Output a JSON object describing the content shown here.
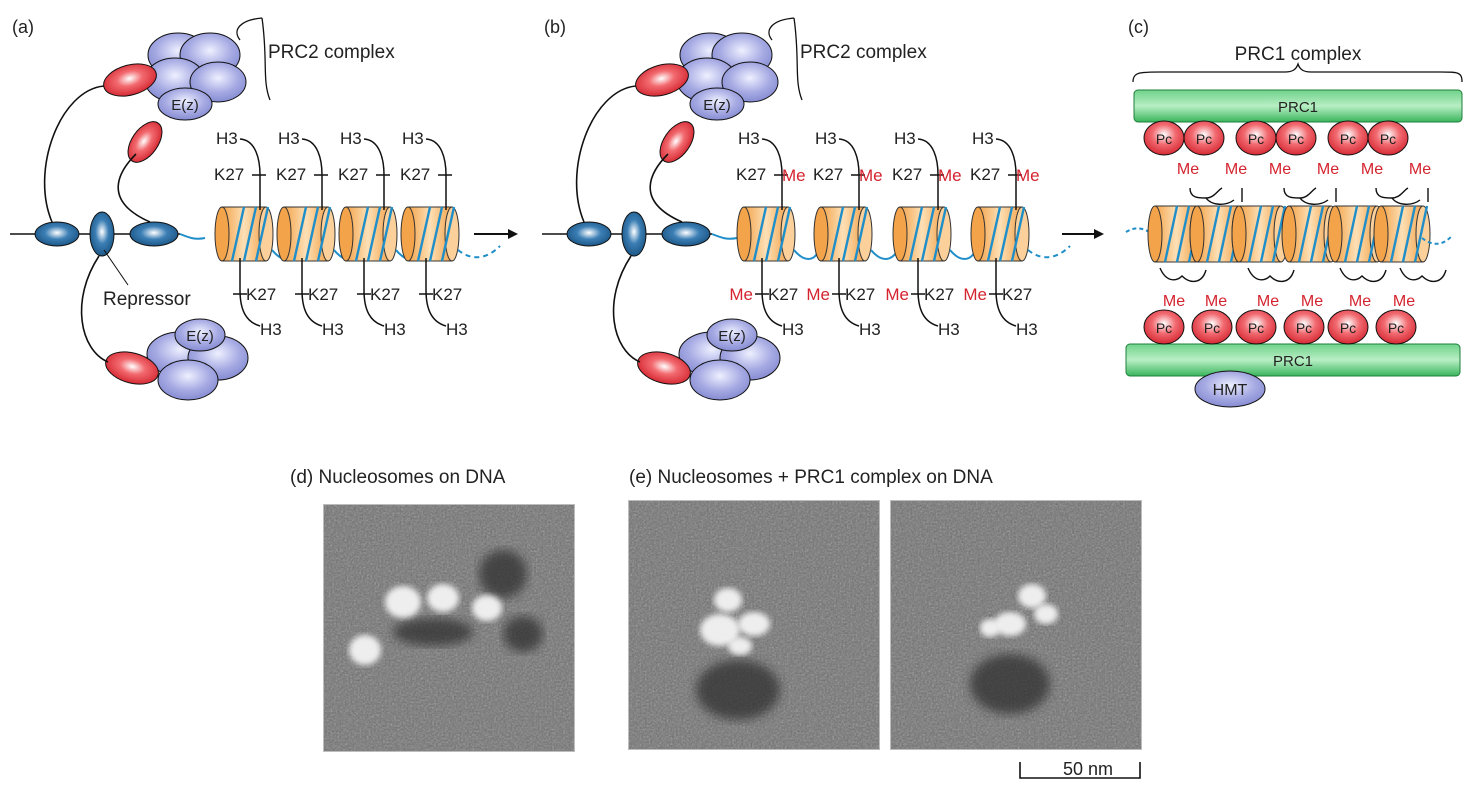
{
  "panels": {
    "a": {
      "letter": "(a)",
      "complex_label": "PRC2 complex",
      "repressor_label": "Repressor",
      "ez_label": "E(z)",
      "h3": "H3",
      "k27": "K27"
    },
    "b": {
      "letter": "(b)",
      "complex_label": "PRC2 complex",
      "ez_label": "E(z)",
      "h3": "H3",
      "k27": "K27",
      "me": "Me"
    },
    "c": {
      "letter": "(c)",
      "complex_label": "PRC1 complex",
      "prc1_label": "PRC1",
      "pc_label": "Pc",
      "me": "Me",
      "hmt_label": "HMT"
    },
    "d": {
      "caption": "(d) Nucleosomes on DNA"
    },
    "e": {
      "caption": "(e) Nucleosomes + PRC1 complex on DNA"
    }
  },
  "scale_bar": {
    "label": "50 nm"
  },
  "colors": {
    "repressor_blue": "#1d5f93",
    "prc2_purple": "#9a9fdc",
    "red_subunit": "#e0313a",
    "nucleosome_orange": "#f5b363",
    "dna_blue": "#1f8ec9",
    "prc1_green": "#3fbf63",
    "methyl_red": "#d4232f"
  }
}
